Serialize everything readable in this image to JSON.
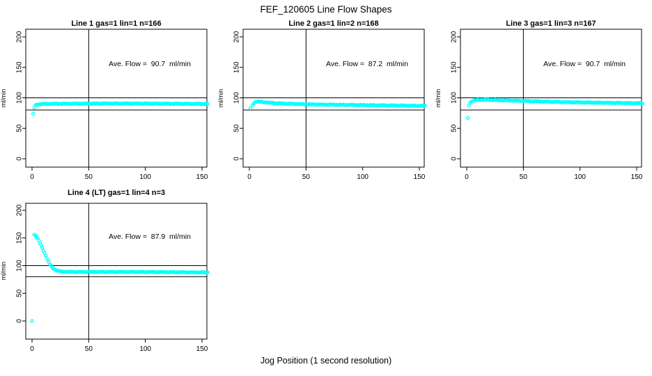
{
  "figure": {
    "title": "FEF_120605  Line Flow Shapes",
    "x_label": "Jog Position (1 second resolution)"
  },
  "colors": {
    "data_marker": "#00ffff",
    "axis": "#000000",
    "background": "#ffffff"
  },
  "chart_data": [
    {
      "type": "scatter",
      "title": "Line 1 gas=1 lin=1 n=166",
      "annotation": "Ave. Flow =  90.7  ml/min",
      "ave_flow_ml_min": 90.7,
      "n_points": 166,
      "ylabel": "ml/min",
      "xlim": [
        0,
        155
      ],
      "ylim": [
        0,
        200
      ],
      "x_ticks": [
        0,
        50,
        100,
        150
      ],
      "y_ticks": [
        0,
        50,
        100,
        150,
        200
      ],
      "ref_lines_y": [
        80,
        100
      ],
      "ref_line_x": 50,
      "marker": "open-circle",
      "interpolation": "linear-1s-steps",
      "outliers": [
        [
          1,
          74
        ]
      ],
      "keypoints": [
        [
          2,
          84
        ],
        [
          3,
          87.5
        ],
        [
          4,
          88.5
        ],
        [
          6,
          89.5
        ],
        [
          10,
          90
        ],
        [
          20,
          90.3
        ],
        [
          40,
          90.5
        ],
        [
          70,
          90.8
        ],
        [
          100,
          90.6
        ],
        [
          130,
          90.3
        ],
        [
          155,
          90
        ]
      ]
    },
    {
      "type": "scatter",
      "title": "Line 2 gas=1 lin=2 n=168",
      "annotation": "Ave. Flow =  87.2  ml/min",
      "ave_flow_ml_min": 87.2,
      "n_points": 168,
      "ylabel": "ml/min",
      "xlim": [
        0,
        155
      ],
      "ylim": [
        0,
        200
      ],
      "x_ticks": [
        0,
        50,
        100,
        150
      ],
      "y_ticks": [
        0,
        50,
        100,
        150,
        200
      ],
      "ref_lines_y": [
        80,
        100
      ],
      "ref_line_x": 50,
      "marker": "open-circle",
      "interpolation": "linear-1s-steps",
      "outliers": [
        [
          1,
          83
        ]
      ],
      "keypoints": [
        [
          3,
          88
        ],
        [
          4,
          91
        ],
        [
          5,
          93
        ],
        [
          7,
          94
        ],
        [
          10,
          93.5
        ],
        [
          15,
          92.5
        ],
        [
          25,
          91
        ],
        [
          40,
          90
        ],
        [
          60,
          89
        ],
        [
          90,
          88.3
        ],
        [
          120,
          87.6
        ],
        [
          155,
          86.8
        ]
      ]
    },
    {
      "type": "scatter",
      "title": "Line 3 gas=1 lin=3 n=167",
      "annotation": "Ave. Flow =  90.7  ml/min",
      "ave_flow_ml_min": 90.7,
      "n_points": 167,
      "ylabel": "ml/min",
      "xlim": [
        0,
        155
      ],
      "ylim": [
        0,
        200
      ],
      "x_ticks": [
        0,
        50,
        100,
        150
      ],
      "y_ticks": [
        0,
        50,
        100,
        150,
        200
      ],
      "ref_lines_y": [
        80,
        100
      ],
      "ref_line_x": 50,
      "marker": "open-circle",
      "interpolation": "linear-1s-steps",
      "outliers": [
        [
          1,
          67
        ]
      ],
      "keypoints": [
        [
          2,
          88
        ],
        [
          3,
          92
        ],
        [
          5,
          95
        ],
        [
          8,
          96.5
        ],
        [
          15,
          97
        ],
        [
          25,
          96.5
        ],
        [
          40,
          95.5
        ],
        [
          60,
          94.3
        ],
        [
          80,
          93.3
        ],
        [
          100,
          92.6
        ],
        [
          120,
          92
        ],
        [
          155,
          91.2
        ]
      ]
    },
    {
      "type": "scatter",
      "title": "Line 4 (LT) gas=1 lin=4 n=3",
      "annotation": "Ave. Flow =  87.9  ml/min",
      "ave_flow_ml_min": 87.9,
      "n_points": 3,
      "ylabel": "ml/min",
      "xlim": [
        0,
        155
      ],
      "ylim": [
        0,
        200
      ],
      "x_ticks": [
        0,
        50,
        100,
        150
      ],
      "y_ticks": [
        0,
        50,
        100,
        150,
        200
      ],
      "ref_lines_y": [
        80,
        100
      ],
      "ref_line_x": 50,
      "marker": "open-circle",
      "interpolation": "linear-1s-steps",
      "outliers": [
        [
          0,
          0
        ]
      ],
      "keypoints": [
        [
          2,
          156
        ],
        [
          3,
          154.5
        ],
        [
          4,
          152
        ],
        [
          5,
          149
        ],
        [
          6,
          145
        ],
        [
          7,
          141
        ],
        [
          8,
          136.5
        ],
        [
          9,
          132
        ],
        [
          10,
          127.5
        ],
        [
          11,
          123
        ],
        [
          12,
          118.5
        ],
        [
          13,
          114
        ],
        [
          14,
          109.5
        ],
        [
          15,
          105.5
        ],
        [
          16,
          102
        ],
        [
          17,
          99
        ],
        [
          18,
          96.5
        ],
        [
          19,
          94.5
        ],
        [
          20,
          93
        ],
        [
          22,
          91.2
        ],
        [
          24,
          90
        ],
        [
          27,
          89.2
        ],
        [
          30,
          88.8
        ],
        [
          40,
          88.6
        ],
        [
          60,
          88.7
        ],
        [
          90,
          88.6
        ],
        [
          120,
          88.3
        ],
        [
          155,
          87.7
        ]
      ]
    }
  ]
}
